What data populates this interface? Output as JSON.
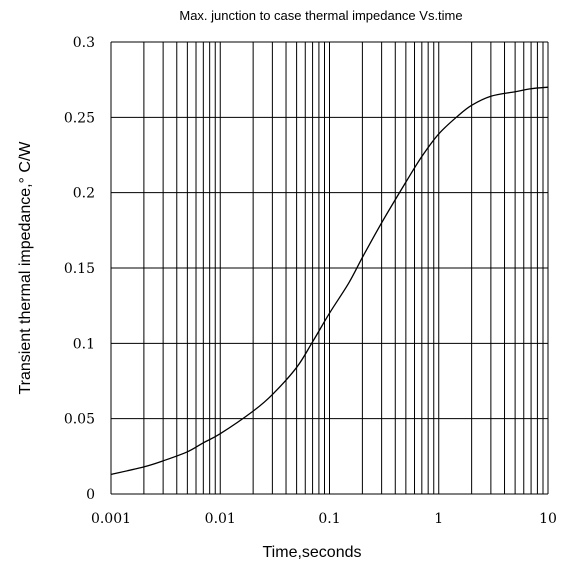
{
  "chart_data": {
    "type": "line",
    "title": "Max. junction to case thermal impedance Vs.time",
    "xlabel": "Time,seconds",
    "ylabel": "Transient thermal impedance,° C/W",
    "x_scale": "log",
    "xlim": [
      0.001,
      10
    ],
    "ylim": [
      0,
      0.3
    ],
    "x_ticks": [
      "0.001",
      "0.01",
      "0.1",
      "1",
      "10"
    ],
    "y_ticks": [
      "0",
      "0.05",
      "0.1",
      "0.15",
      "0.2",
      "0.25",
      "0.3"
    ],
    "grid": true,
    "legend": "none",
    "series": [
      {
        "x": [
          0.001,
          0.002,
          0.003,
          0.005,
          0.007,
          0.01,
          0.02,
          0.03,
          0.05,
          0.07,
          0.1,
          0.15,
          0.2,
          0.3,
          0.5,
          0.7,
          1,
          1.5,
          2,
          3,
          5,
          7,
          10
        ],
        "y": [
          0.013,
          0.018,
          0.022,
          0.028,
          0.034,
          0.04,
          0.055,
          0.066,
          0.084,
          0.101,
          0.12,
          0.14,
          0.157,
          0.18,
          0.207,
          0.224,
          0.239,
          0.251,
          0.258,
          0.264,
          0.267,
          0.269,
          0.27
        ]
      }
    ]
  }
}
